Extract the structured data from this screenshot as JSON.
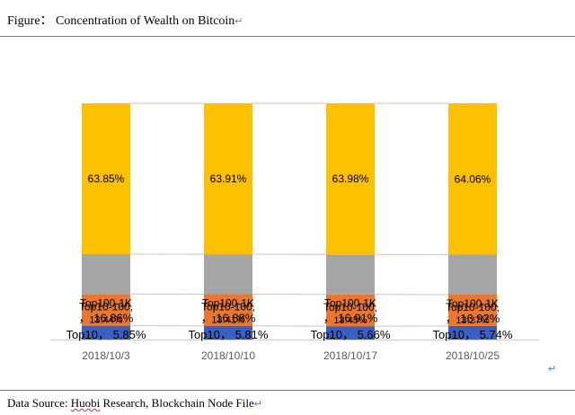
{
  "header": {
    "title": "Figure： Concentration of Wealth on Bitcoin",
    "para_mark": "↵"
  },
  "footer": {
    "prefix": "Data Source: ",
    "source_1": "Huobi",
    "source_rest": " Research, Blockchain Node File",
    "para_mark": "↵"
  },
  "chart_data": {
    "type": "bar",
    "stacked": true,
    "categories": [
      "2018/10/3",
      "2018/10/10",
      "2018/10/17",
      "2018/10/25"
    ],
    "series": [
      {
        "name": "Top10",
        "values": [
          5.85,
          5.81,
          5.66,
          5.74
        ],
        "color": "#3a5fbf",
        "labels": [
          "Top10， 5.85%",
          "Top10， 5.81%",
          "Top10， 5.66%",
          "Top10， 5.74%"
        ]
      },
      {
        "name": "Top10-100",
        "values": [
          13.44,
          13.41,
          13.45,
          13.27
        ],
        "color": "#e87732",
        "labels": [
          [
            "Top10-100,",
            "13.44%"
          ],
          [
            "Top10-100,",
            "13.41%"
          ],
          [
            "Top10-100,",
            "13.45%"
          ],
          [
            "Top10-100,",
            "13.27%"
          ]
        ]
      },
      {
        "name": "Top100-1K",
        "values": [
          16.86,
          16.88,
          16.91,
          16.92
        ],
        "color": "#a5a5a5",
        "labels": [
          [
            "Top100-1K",
            "， 16.86%"
          ],
          [
            "Top100-1K",
            "， 16.88%"
          ],
          [
            "Top100-1K",
            "， 16.91%"
          ],
          [
            "Top100-1K",
            "， 16.92%"
          ]
        ]
      },
      {
        "name": "Rest",
        "values": [
          63.85,
          63.91,
          63.98,
          64.06
        ],
        "color": "#ffc000",
        "labels": [
          "63.85%",
          "63.91%",
          "63.98%",
          "64.06%"
        ]
      }
    ],
    "ylim": [
      0,
      100
    ],
    "series_lines": true,
    "grid": false,
    "legend": "none"
  }
}
